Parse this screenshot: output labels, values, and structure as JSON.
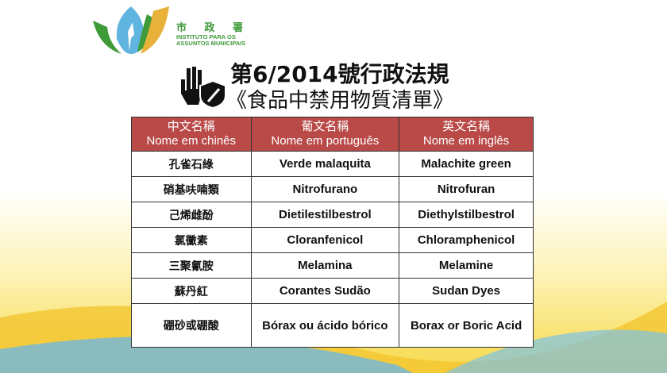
{
  "logo": {
    "cn": "市 政 署",
    "pt_line1": "INSTITUTO PARA OS",
    "pt_line2": "ASSUNTOS MUNICIPAIS"
  },
  "title": {
    "line1": "第6/2014號行政法規",
    "line2": "《食品中禁用物質清單》"
  },
  "table": {
    "headers": [
      {
        "cn": "中文名稱",
        "pt": "Nome em chinês"
      },
      {
        "cn": "葡文名稱",
        "pt": "Nome em português"
      },
      {
        "cn": "英文名稱",
        "pt": "Nome em inglês"
      }
    ],
    "rows": [
      [
        "孔雀石綠",
        "Verde malaquita",
        "Malachite green"
      ],
      [
        "硝基呋喃類",
        "Nitrofurano",
        "Nitrofuran"
      ],
      [
        "己烯雌酚",
        "Dietilestilbestrol",
        "Diethylstilbestrol"
      ],
      [
        "氯黴素",
        "Cloranfenicol",
        "Chloramphenicol"
      ],
      [
        "三聚氰胺",
        "Melamina",
        "Melamine"
      ],
      [
        "蘇丹紅",
        "Corantes Sudão",
        "Sudan Dyes"
      ],
      [
        "硼砂或硼酸",
        "Bórax ou ácido bórico",
        "Borax or Boric Acid"
      ]
    ],
    "header_color": "#b94a48"
  },
  "icons": [
    "hand-stop-icon",
    "shield-prohibited-icon"
  ]
}
